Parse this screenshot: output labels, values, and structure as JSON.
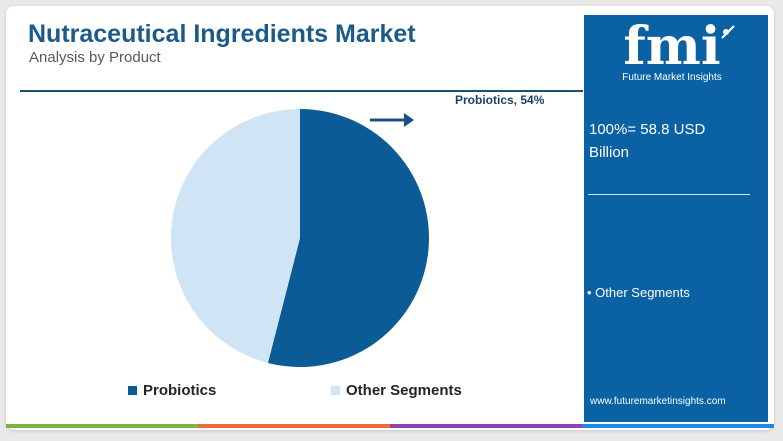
{
  "header": {
    "title": "Nutraceutical Ingredients Market",
    "subtitle": "Analysis by Product"
  },
  "sidebar": {
    "logo_text": "fmi",
    "logo_caption": "Future Market Insights",
    "total_label": "100%= 58.8 USD Billion",
    "segments": [
      "• Other Segments"
    ],
    "url": "www.futuremarketinsights.com"
  },
  "chart_data": {
    "type": "pie",
    "title": "",
    "categories": [
      "Probiotics",
      "Other Segments"
    ],
    "values": [
      54,
      46
    ],
    "unit": "%",
    "colors": [
      "#0b5b96",
      "#cfe4f5"
    ],
    "annotations": [
      {
        "label": "Probiotics, 54%",
        "target": "Probiotics"
      }
    ],
    "legend": {
      "placement": "bottom",
      "entries": [
        "Probiotics",
        "Other Segments"
      ]
    }
  },
  "colors": {
    "brand": "#0a61a4",
    "title": "#1b5b8a",
    "strip": [
      "#7cb342",
      "#ef6c3a",
      "#8e44ad",
      "#1e88e5"
    ]
  }
}
